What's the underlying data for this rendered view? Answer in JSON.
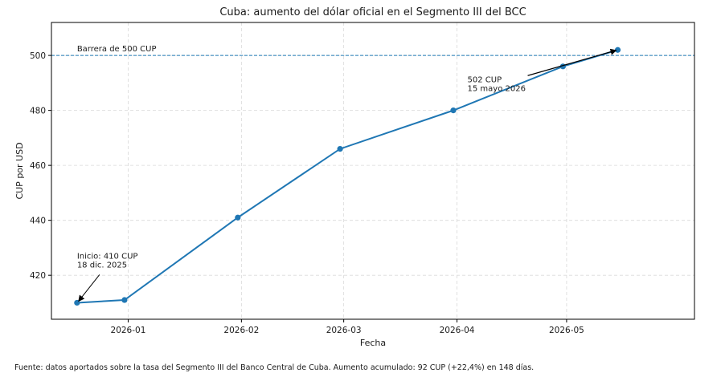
{
  "chart_data": {
    "type": "line",
    "title": "Cuba: aumento del dólar oficial en el Segmento III del BCC",
    "xlabel": "Fecha",
    "ylabel": "CUP por USD",
    "x_ticks": [
      "2026-01",
      "2026-02",
      "2026-03",
      "2026-04",
      "2026-05"
    ],
    "y_ticks": [
      420,
      440,
      460,
      480,
      500
    ],
    "xlim": [
      "2025-12-11",
      "2026-06-05"
    ],
    "ylim": [
      404,
      512
    ],
    "grid": true,
    "series": [
      {
        "color": "#1f77b4",
        "points": [
          {
            "x": "2025-12-18",
            "y": 410
          },
          {
            "x": "2025-12-31",
            "y": 411
          },
          {
            "x": "2026-01-31",
            "y": 441
          },
          {
            "x": "2026-02-28",
            "y": 466
          },
          {
            "x": "2026-03-31",
            "y": 480
          },
          {
            "x": "2026-04-30",
            "y": 496
          },
          {
            "x": "2026-05-15",
            "y": 502
          }
        ]
      }
    ],
    "reference_line": {
      "y": 500,
      "label": "Barrera de 500 CUP",
      "style": "dashed",
      "color": "#1f77b4"
    },
    "annotations": [
      {
        "lines": [
          "Inicio: 410 CUP",
          "18 dic. 2025"
        ],
        "x": "2025-12-18",
        "y": 410
      },
      {
        "lines": [
          "502 CUP",
          "15 mayo 2026"
        ],
        "x": "2026-05-15",
        "y": 502
      }
    ],
    "footnote": "Fuente: datos aportados sobre la tasa del Segmento III del Banco Central de Cuba. Aumento acumulado: 92 CUP (+22,4%) en 148 días."
  }
}
